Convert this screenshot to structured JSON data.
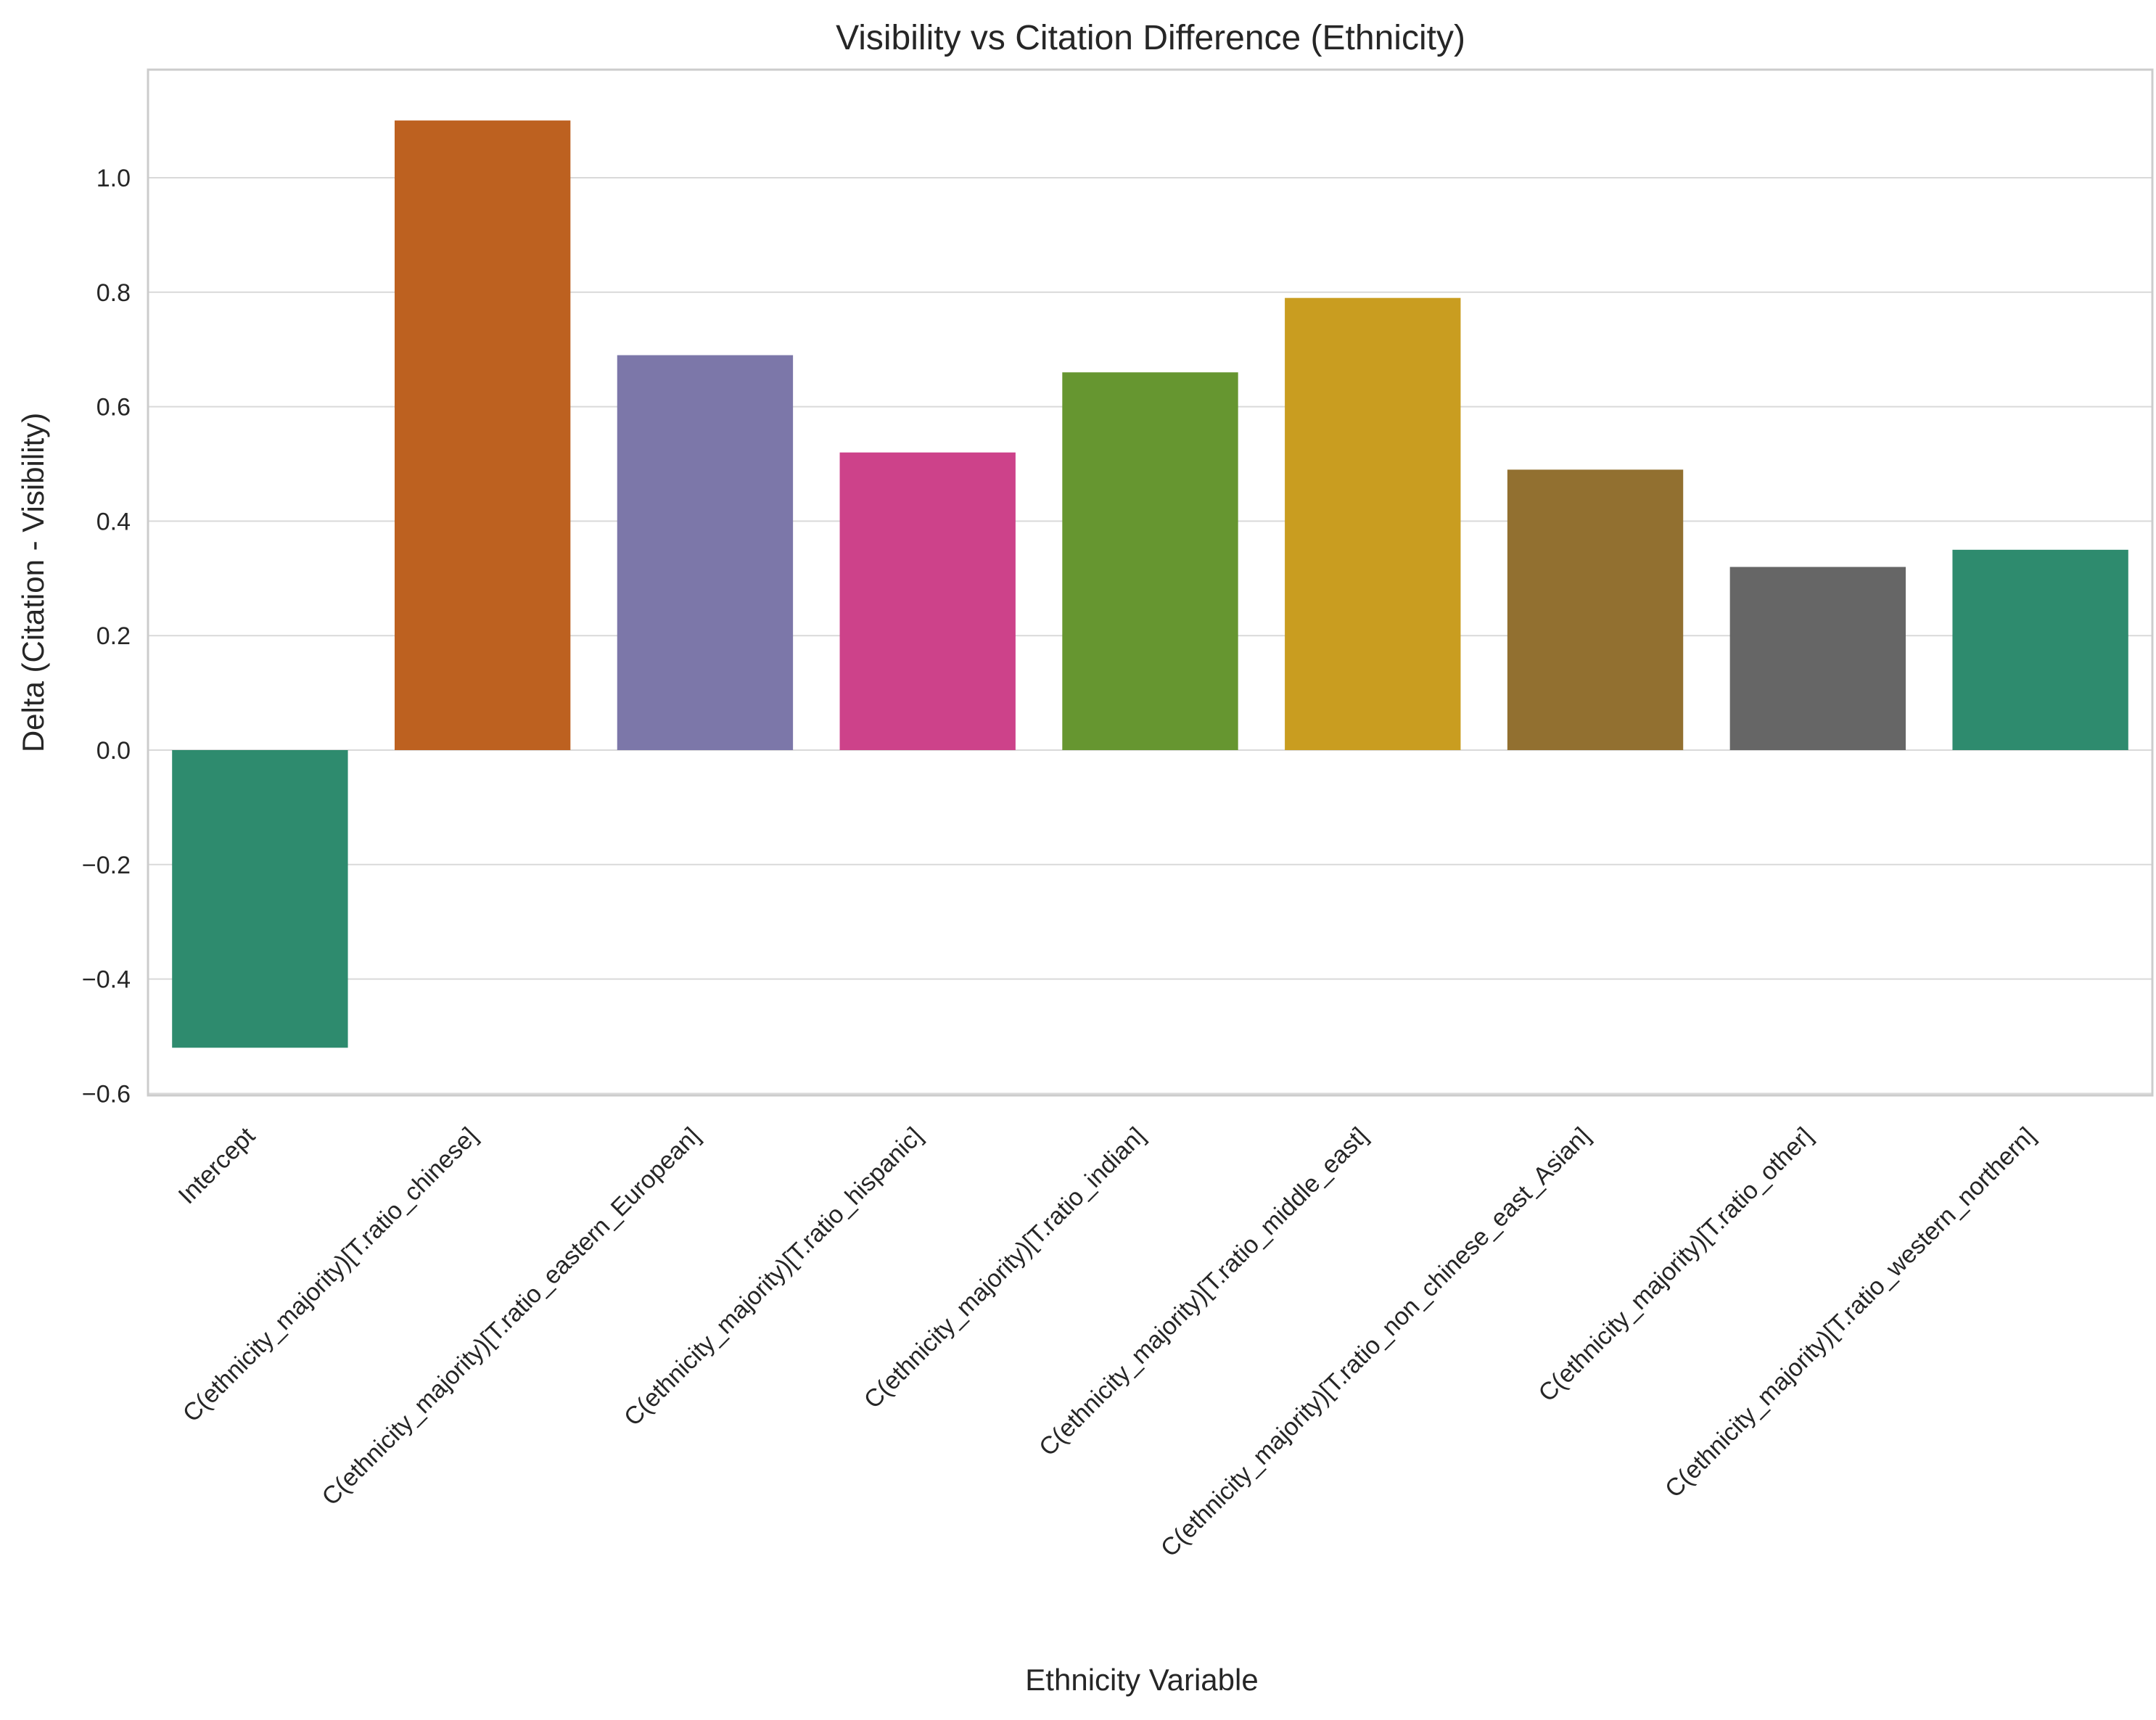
{
  "chart_data": {
    "type": "bar",
    "title": "Visibility vs Citation Difference (Ethnicity)",
    "xlabel": "Ethnicity Variable",
    "ylabel": "Delta (Citation - Visibility)",
    "ylim": [
      -0.6,
      1.2
    ],
    "yticks": [
      -0.6,
      -0.4,
      -0.2,
      0.0,
      0.2,
      0.4,
      0.6,
      0.8,
      1.0
    ],
    "grid": true,
    "legend": "none",
    "categories": [
      "Intercept",
      "C(ethnicity_majority)[T.ratio_chinese]",
      "C(ethnicity_majority)[T.ratio_eastern_European]",
      "C(ethnicity_majority)[T.ratio_hispanic]",
      "C(ethnicity_majority)[T.ratio_indian]",
      "C(ethnicity_majority)[T.ratio_middle_east]",
      "C(ethnicity_majority)[T.ratio_non_chinese_east_Asian]",
      "C(ethnicity_majority)[T.ratio_other]",
      "C(ethnicity_majority)[T.ratio_western_northern]"
    ],
    "values": [
      -0.52,
      1.1,
      0.69,
      0.52,
      0.66,
      0.79,
      0.49,
      0.32,
      0.35
    ],
    "colors": [
      "#2E8B6E",
      "#BD6120",
      "#7C77A9",
      "#CD428A",
      "#669630",
      "#C99D20",
      "#927030",
      "#666666",
      "#2E8B6E"
    ]
  }
}
